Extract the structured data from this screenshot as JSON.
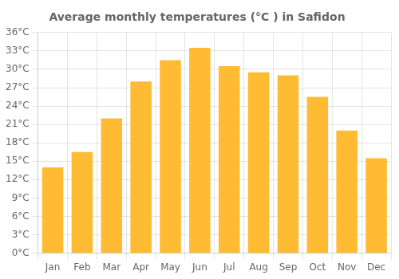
{
  "chart_data": {
    "type": "bar",
    "title": "Average monthly temperatures (°C ) in Safidon",
    "categories": [
      "Jan",
      "Feb",
      "Mar",
      "Apr",
      "May",
      "Jun",
      "Jul",
      "Aug",
      "Sep",
      "Oct",
      "Nov",
      "Dec"
    ],
    "values": [
      14,
      16.5,
      22,
      28,
      31.5,
      33.5,
      30.5,
      29.5,
      29,
      25.5,
      20,
      15.5
    ],
    "color": "#FFBB33",
    "ylim": [
      0,
      36
    ],
    "yticks": [
      {
        "value": 0,
        "label": "0°C"
      },
      {
        "value": 3,
        "label": "3°C"
      },
      {
        "value": 6,
        "label": "6°C"
      },
      {
        "value": 9,
        "label": "9°C"
      },
      {
        "value": 12,
        "label": "12°C"
      },
      {
        "value": 15,
        "label": "15°C"
      },
      {
        "value": 18,
        "label": "18°C"
      },
      {
        "value": 21,
        "label": "21°C"
      },
      {
        "value": 24,
        "label": "24°C"
      },
      {
        "value": 27,
        "label": "27°C"
      },
      {
        "value": 30,
        "label": "30°C"
      },
      {
        "value": 33,
        "label": "33°C"
      },
      {
        "value": 36,
        "label": "36°C"
      }
    ],
    "grid": true
  }
}
